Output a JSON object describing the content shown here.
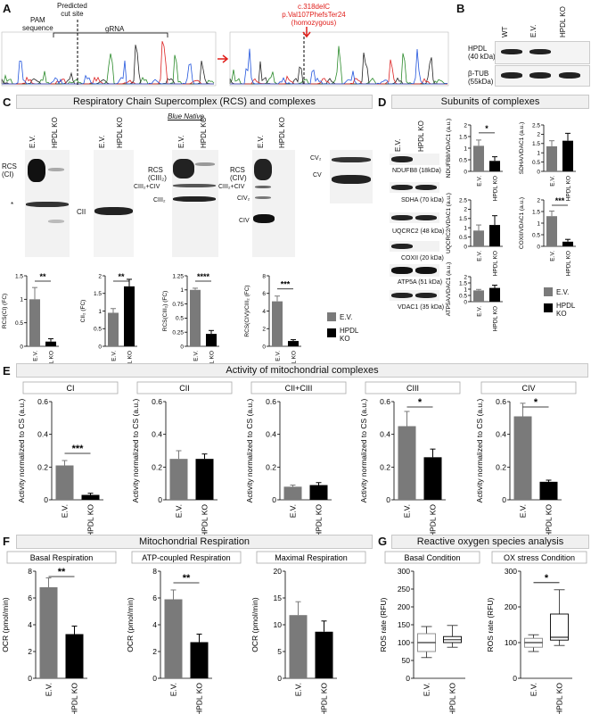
{
  "panels": {
    "A": "A",
    "B": "B",
    "C": "C",
    "D": "D",
    "E": "E",
    "F": "F",
    "G": "G"
  },
  "panelA": {
    "pam": "PAM\nsequence",
    "cut": "Predicted\ncut site",
    "grna": "gRNA",
    "mutation_line1": "c.318delC",
    "mutation_line2": "p.Val107PhefsTer24",
    "mutation_line3": "(homozygous)",
    "mut_color": "#e0201c"
  },
  "panelB": {
    "lanes": [
      "WT",
      "E.V.",
      "HPDL KO"
    ],
    "rows": [
      "HPDL\n(40 kDa)",
      "β-TUB\n(55kDa)"
    ]
  },
  "panelC": {
    "title": "Respiratory Chain Supercomplex (RCS) and complexes",
    "blue_native": "Blue Native",
    "lane_ev": "E.V.",
    "lane_ko": "HPDL KO",
    "labels": {
      "rcs_ci": "RCS\n(CI)",
      "star": "*",
      "cii": "CII",
      "rcs_ciii": "RCS\n(CIII₂)",
      "ciii_civ": "CIII₂+CIV",
      "ciii": "CIII₂",
      "rcs_civ": "RCS\n(CIV)",
      "ciii_civ2": "CIII₂+CIV",
      "civ2": "CIV₂",
      "civ": "CIV",
      "cv2": "CV₂",
      "cv": "CV"
    },
    "legend": [
      "E.V.",
      "HPDL KO"
    ]
  },
  "panelD": {
    "title": "Subunits of complexes",
    "lane_ev": "E.V.",
    "lane_ko": "HPDL KO",
    "bands": [
      "NDUFB8 (18kDa)",
      "SDHA (70 kDa)",
      "UQCRC2 (48 kDa)",
      "COXII (20 kDa)",
      "ATP5A (51 kDa)",
      "VDAC1 (35 kDa)"
    ],
    "legend": [
      "E.V.",
      "HPDL KO"
    ]
  },
  "panelE": {
    "title": "Activity of mitochondrial complexes"
  },
  "panelF": {
    "title": "Mitochondrial Respiration"
  },
  "panelG": {
    "title": "Reactive oxygen species analysis"
  },
  "colors": {
    "ev": "#7a7a7a",
    "ko": "#000000"
  },
  "chart_data": [
    {
      "id": "C1",
      "type": "bar",
      "categories": [
        "E.V.",
        "HPDL KO"
      ],
      "values": [
        1.0,
        0.1
      ],
      "errors": [
        0.25,
        0.06
      ],
      "ylabel": "RCS(CI) (FC)",
      "yticks": [
        0.0,
        0.5,
        1.0,
        1.5
      ],
      "ylim": [
        0,
        1.5
      ],
      "sig": "**"
    },
    {
      "id": "C2",
      "type": "bar",
      "categories": [
        "E.V.",
        "HPDL KO"
      ],
      "values": [
        0.95,
        1.7
      ],
      "errors": [
        0.12,
        0.2
      ],
      "ylabel": "CII₂ (FC)",
      "yticks": [
        0.0,
        0.5,
        1.0,
        1.5,
        2.0
      ],
      "ylim": [
        0,
        2.0
      ],
      "sig": "**"
    },
    {
      "id": "C3",
      "type": "bar",
      "categories": [
        "E.V.",
        "HPDL KO"
      ],
      "values": [
        1.0,
        0.22
      ],
      "errors": [
        0.03,
        0.06
      ],
      "ylabel": "RCS(CIII₂) (FC)",
      "yticks": [
        0.0,
        0.25,
        0.5,
        0.75,
        1.0,
        1.25
      ],
      "ylim": [
        0,
        1.25
      ],
      "sig": "****"
    },
    {
      "id": "C4",
      "type": "bar",
      "categories": [
        "E.V.",
        "HPDL KO"
      ],
      "values": [
        5.1,
        0.6
      ],
      "errors": [
        0.6,
        0.15
      ],
      "ylabel": "RCS(CIV)/CIII₂ (FC)",
      "yticks": [
        0,
        2,
        4,
        6,
        8
      ],
      "ylim": [
        0,
        8
      ],
      "sig": "***"
    },
    {
      "id": "D1",
      "type": "bar",
      "categories": [
        "E.V.",
        "HPDL KO"
      ],
      "values": [
        1.1,
        0.45
      ],
      "errors": [
        0.25,
        0.18
      ],
      "ylabel": "NDUFB8/VDAC1 (a.u.)",
      "yticks": [
        0.0,
        0.5,
        1.0,
        1.5,
        2.0
      ],
      "ylim": [
        0,
        2.0
      ],
      "sig": "*"
    },
    {
      "id": "D2",
      "type": "bar",
      "categories": [
        "E.V.",
        "HPDL KO"
      ],
      "values": [
        1.35,
        1.65
      ],
      "errors": [
        0.3,
        0.4
      ],
      "ylabel": "SDHA/VDAC1 (a.u.)",
      "yticks": [
        0.0,
        0.5,
        1.0,
        1.5,
        2.0,
        2.5
      ],
      "ylim": [
        0,
        2.5
      ],
      "sig": ""
    },
    {
      "id": "D3",
      "type": "bar",
      "categories": [
        "E.V.",
        "HPDL KO"
      ],
      "values": [
        0.85,
        1.15
      ],
      "errors": [
        0.3,
        0.5
      ],
      "ylabel": "UQCRC2/VDAC1 (a.u.)",
      "yticks": [
        0.0,
        0.5,
        1.0,
        1.5,
        2.0,
        2.5
      ],
      "ylim": [
        0,
        2.5
      ],
      "sig": ""
    },
    {
      "id": "D4",
      "type": "bar",
      "categories": [
        "E.V.",
        "HPDL KO"
      ],
      "values": [
        1.3,
        0.2
      ],
      "errors": [
        0.22,
        0.1
      ],
      "ylabel": "COXII/VDAC1 (a.u.)",
      "yticks": [
        0.0,
        0.5,
        1.0,
        1.5,
        2.0
      ],
      "ylim": [
        0,
        2.0
      ],
      "sig": "***"
    },
    {
      "id": "D5",
      "type": "bar",
      "categories": [
        "E.V.",
        "HPDL KO"
      ],
      "values": [
        0.9,
        1.1
      ],
      "errors": [
        0.08,
        0.22
      ],
      "ylabel": "ATP5A/VDAC1 (a.u.)",
      "yticks": [
        0.0,
        0.5,
        1.0,
        1.5,
        2.0
      ],
      "ylim": [
        0,
        2.0
      ],
      "sig": ""
    },
    {
      "id": "E1",
      "type": "bar",
      "header": "CI",
      "categories": [
        "E.V.",
        "HPDL KO"
      ],
      "values": [
        0.21,
        0.03
      ],
      "errors": [
        0.03,
        0.01
      ],
      "ylabel": "Activity normalized to CS (a.u.)",
      "yticks": [
        0.0,
        0.2,
        0.4,
        0.6
      ],
      "ylim": [
        0,
        0.6
      ],
      "sig": "***"
    },
    {
      "id": "E2",
      "type": "bar",
      "header": "CII",
      "categories": [
        "E.V.",
        "HPDL KO"
      ],
      "values": [
        0.25,
        0.25
      ],
      "errors": [
        0.05,
        0.03
      ],
      "ylabel": "Activity normalized to CS (a.u.)",
      "yticks": [
        0.0,
        0.2,
        0.4,
        0.6
      ],
      "ylim": [
        0,
        0.6
      ],
      "sig": ""
    },
    {
      "id": "E3",
      "type": "bar",
      "header": "CII+CIII",
      "categories": [
        "E.V.",
        "HPDL KO"
      ],
      "values": [
        0.08,
        0.09
      ],
      "errors": [
        0.01,
        0.015
      ],
      "ylabel": "Activity normalized to CS (a.u.)",
      "yticks": [
        0.0,
        0.2,
        0.4,
        0.6
      ],
      "ylim": [
        0,
        0.6
      ],
      "sig": ""
    },
    {
      "id": "E4",
      "type": "bar",
      "header": "CIII",
      "categories": [
        "E.V.",
        "HPDL KO"
      ],
      "values": [
        0.45,
        0.26
      ],
      "errors": [
        0.09,
        0.05
      ],
      "ylabel": "Activity normalized to CS (a.u.)",
      "yticks": [
        0.0,
        0.2,
        0.4,
        0.6
      ],
      "ylim": [
        0,
        0.6
      ],
      "sig": "*"
    },
    {
      "id": "E5",
      "type": "bar",
      "header": "CIV",
      "categories": [
        "E.V.",
        "HPDL KO"
      ],
      "values": [
        0.51,
        0.11
      ],
      "errors": [
        0.08,
        0.01
      ],
      "ylabel": "Activity normalized to CS (a.u.)",
      "yticks": [
        0.0,
        0.2,
        0.4,
        0.6
      ],
      "ylim": [
        0,
        0.6
      ],
      "sig": "*"
    },
    {
      "id": "F1",
      "type": "bar",
      "header": "Basal Respiration",
      "categories": [
        "E.V.",
        "HPDL KO"
      ],
      "values": [
        6.8,
        3.3
      ],
      "errors": [
        0.7,
        0.6
      ],
      "ylabel": "OCR (pmol/min)",
      "yticks": [
        0,
        2,
        4,
        6,
        8
      ],
      "ylim": [
        0,
        8
      ],
      "sig": "**"
    },
    {
      "id": "F2",
      "type": "bar",
      "header": "ATP-coupled Respiration",
      "categories": [
        "E.V.",
        "HPDL KO"
      ],
      "values": [
        5.9,
        2.7
      ],
      "errors": [
        0.7,
        0.6
      ],
      "ylabel": "OCR (pmol/min)",
      "yticks": [
        0,
        2,
        4,
        6,
        8
      ],
      "ylim": [
        0,
        8
      ],
      "sig": "**"
    },
    {
      "id": "F3",
      "type": "bar",
      "header": "Maximal Respiration",
      "categories": [
        "E.V.",
        "HPDL KO"
      ],
      "values": [
        11.8,
        8.7
      ],
      "errors": [
        2.5,
        2.0
      ],
      "ylabel": "OCR (pmol/min)",
      "yticks": [
        0,
        5,
        10,
        15,
        20
      ],
      "ylim": [
        0,
        20
      ],
      "sig": ""
    },
    {
      "id": "G1",
      "type": "box",
      "header": "Basal Condition",
      "categories": [
        "E.V.",
        "HPDL KO"
      ],
      "boxes": [
        {
          "min": 58,
          "q1": 75,
          "median": 100,
          "q3": 125,
          "max": 145
        },
        {
          "min": 87,
          "q1": 100,
          "median": 108,
          "q3": 117,
          "max": 148
        }
      ],
      "ylabel": "ROS rate (RFU)",
      "yticks": [
        0,
        50,
        100,
        150,
        200,
        250,
        300
      ],
      "ylim": [
        0,
        300
      ],
      "sig": ""
    },
    {
      "id": "G2",
      "type": "box",
      "header": "OX stress Condition",
      "categories": [
        "E.V.",
        "HPDL KO"
      ],
      "boxes": [
        {
          "min": 75,
          "q1": 87,
          "median": 100,
          "q3": 112,
          "max": 122
        },
        {
          "min": 92,
          "q1": 107,
          "median": 115,
          "q3": 180,
          "max": 248
        }
      ],
      "ylabel": "ROS rate (RFU)",
      "yticks": [
        0,
        100,
        200,
        300
      ],
      "ylim": [
        0,
        300
      ],
      "sig": "*"
    }
  ]
}
